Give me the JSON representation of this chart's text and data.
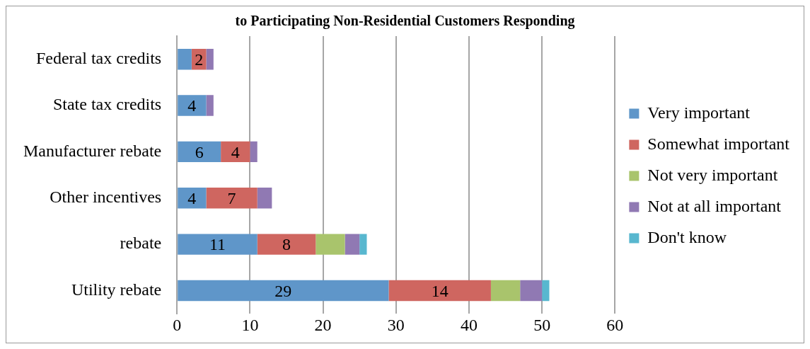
{
  "chart_data": {
    "type": "bar",
    "orientation": "horizontal",
    "stacked": true,
    "title": "to Participating Non-Residential Customers Responding",
    "categories": [
      "Federal tax credits",
      "State tax credits",
      "Manufacturer rebate",
      "Other incentives",
      "rebate",
      "Utility rebate"
    ],
    "series": [
      {
        "name": "Very important",
        "color": "#5f96c9",
        "values": [
          2,
          4,
          6,
          4,
          11,
          29
        ],
        "value_labels": [
          null,
          "4",
          "6",
          "4",
          "11",
          "29"
        ]
      },
      {
        "name": "Somewhat important",
        "color": "#cf6660",
        "values": [
          2,
          0,
          4,
          7,
          8,
          14
        ],
        "value_labels": [
          "2",
          null,
          "4",
          "7",
          "8",
          "14"
        ]
      },
      {
        "name": "Not very important",
        "color": "#a9c46c",
        "values": [
          0,
          0,
          0,
          0,
          4,
          4
        ]
      },
      {
        "name": "Not at all important",
        "color": "#9079b3",
        "values": [
          1,
          1,
          1,
          2,
          2,
          3
        ]
      },
      {
        "name": "Don't know",
        "color": "#58b7cf",
        "values": [
          0,
          0,
          0,
          0,
          1,
          1
        ]
      }
    ],
    "xlim": [
      0,
      60
    ],
    "xticks": [
      0,
      10,
      20,
      30,
      40,
      50,
      60
    ],
    "grid": "x",
    "legend": "right"
  }
}
